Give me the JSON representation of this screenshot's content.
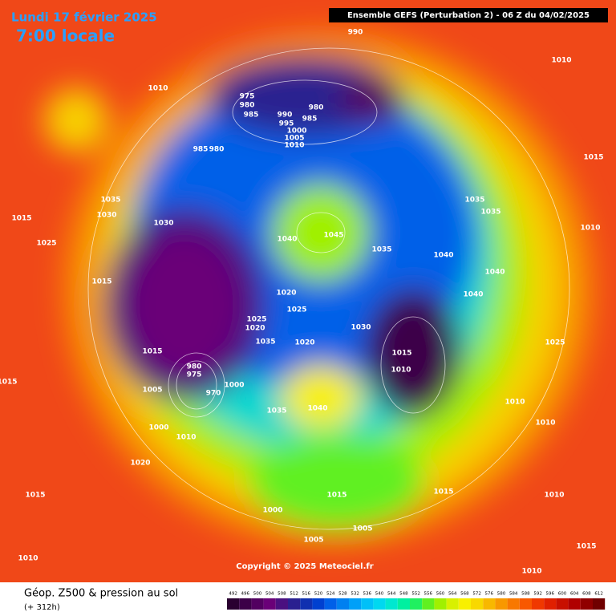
{
  "date_line": "Lundi 17 février 2025",
  "time_line": "7:00 locale",
  "header": "Ensemble GEFS  (Perturbation 2)  -  06 Z du 04/02/2025",
  "copyright": "Copyright © 2025 Meteociel.fr",
  "legend_title": "Géop. Z500 & pression au sol",
  "lead_time": "(+ 312h)",
  "colorbar": {
    "ticks": [
      492,
      496,
      500,
      504,
      508,
      512,
      516,
      520,
      524,
      528,
      532,
      536,
      540,
      544,
      548,
      552,
      556,
      560,
      564,
      568,
      572,
      576,
      580,
      584,
      588,
      592,
      596,
      600,
      604,
      608,
      612
    ],
    "colors": [
      "#2a0030",
      "#3c0048",
      "#520060",
      "#6a0078",
      "#4a1080",
      "#2a2090",
      "#1030b0",
      "#0040d0",
      "#0060e8",
      "#0080f0",
      "#00a0f8",
      "#00c0f8",
      "#00d8f0",
      "#00e8d0",
      "#00f0a0",
      "#20f060",
      "#60f020",
      "#a0f000",
      "#d8f000",
      "#f8f000",
      "#f8d800",
      "#f8b800",
      "#f89800",
      "#f87800",
      "#f85800",
      "#f03800",
      "#e02000",
      "#c81000",
      "#b00000",
      "#900000",
      "#700000"
    ]
  },
  "isobar_labels": [
    990,
    1010,
    1010,
    975,
    980,
    985,
    980,
    990,
    985,
    995,
    1000,
    1005,
    1010,
    985,
    980,
    1015,
    1035,
    1035,
    1030,
    1035,
    1015,
    1030,
    1045,
    1040,
    1010,
    1025,
    1035,
    1040,
    1040,
    1015,
    1020,
    1025,
    1040,
    1025,
    1020,
    1030,
    1035,
    1020,
    1025,
    1015,
    1015,
    1010,
    980,
    975,
    1000,
    970,
    1005,
    1010,
    1035,
    1040,
    1010,
    1000,
    1010,
    1020,
    1015,
    1015,
    1015,
    1010,
    1000,
    1005,
    1005,
    1015,
    1010,
    1010,
    1015
  ]
}
